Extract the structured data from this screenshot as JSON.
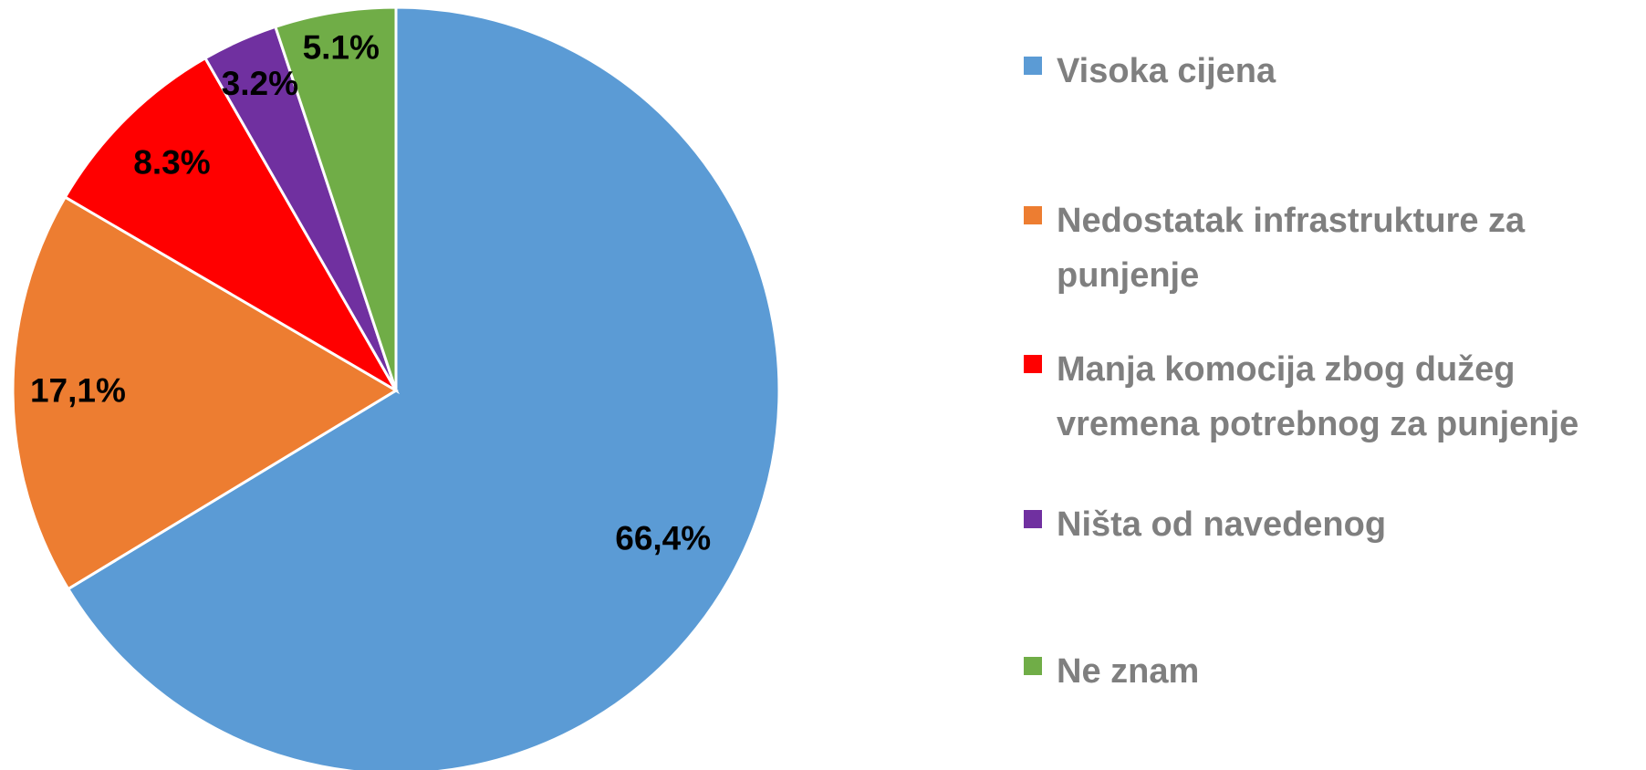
{
  "chart_data": {
    "type": "pie",
    "categories": [
      "Visoka cijena",
      "Nedostatak infrastrukture za punjenje",
      "Manja komocija zbog dužeg vremena potrebnog za punjenje",
      "Ništa od navedenog",
      "Ne znam"
    ],
    "values": [
      66.4,
      17.1,
      8.3,
      3.2,
      5.1
    ],
    "value_labels": [
      "66,4%",
      "17,1%",
      "8.3%",
      "3.2%",
      "5.1%"
    ],
    "colors": [
      "#5b9bd5",
      "#ed7d31",
      "#ff0000",
      "#7030a0",
      "#70ad47"
    ],
    "legend": "right"
  }
}
